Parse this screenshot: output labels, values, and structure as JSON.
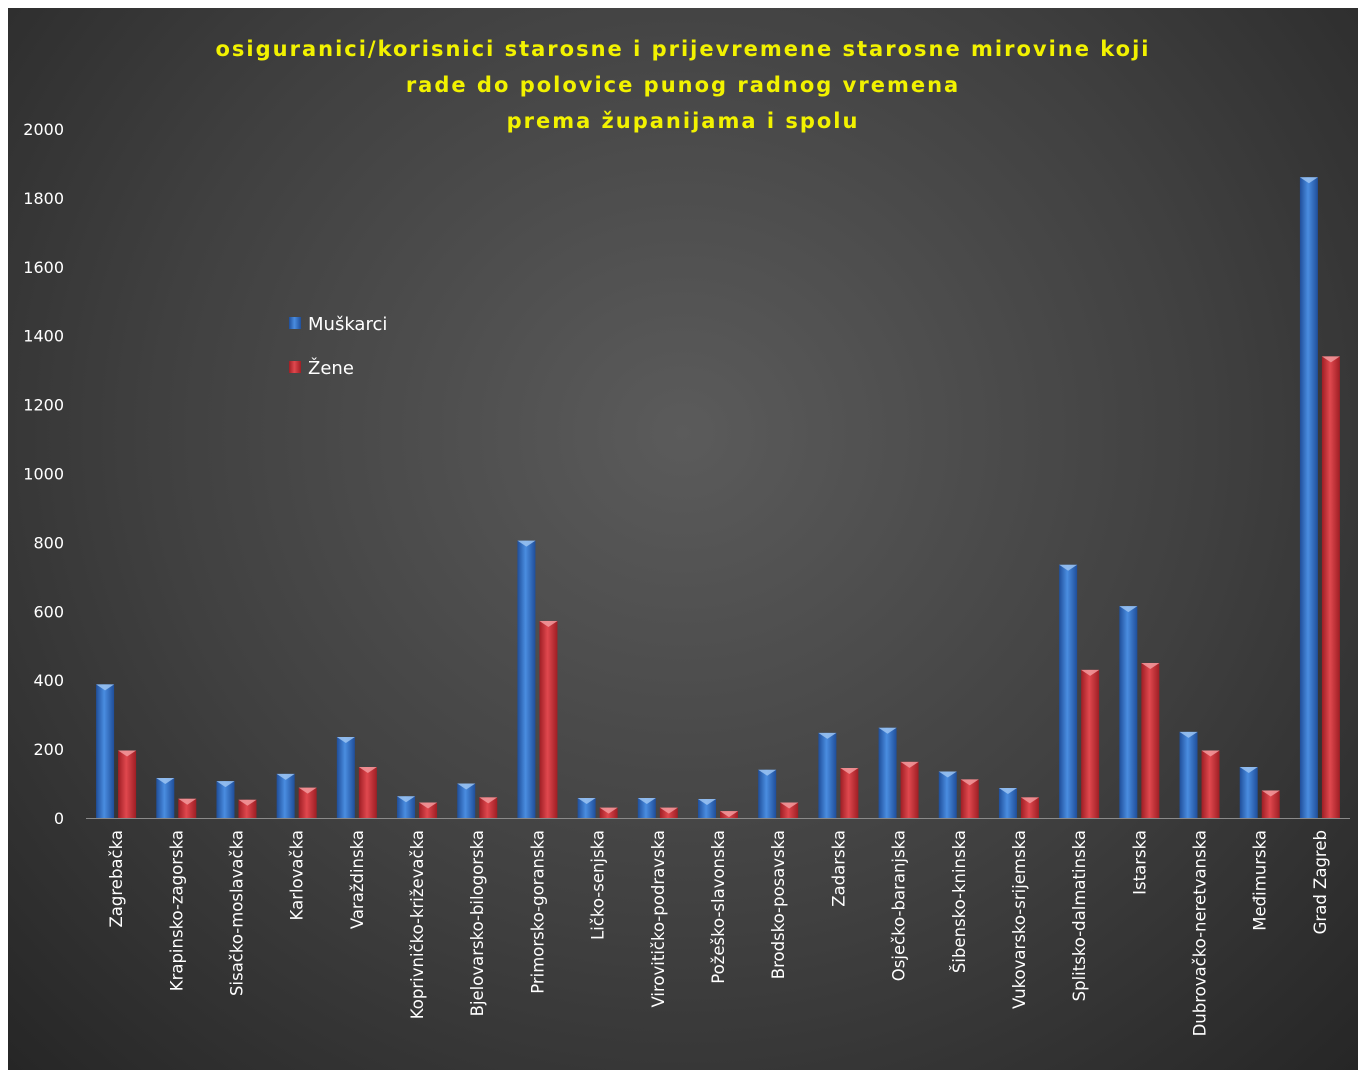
{
  "chart_data": {
    "type": "bar",
    "title": [
      "osiguranici/korisnici starosne i prijevremene starosne mirovine koji",
      "rade do polovice punog radnog vremena",
      "prema županijama i spolu"
    ],
    "xlabel": "",
    "ylabel": "",
    "ylim": [
      0,
      2000
    ],
    "yticks": [
      "0",
      "200",
      "400",
      "600",
      "800",
      "1000",
      "1200",
      "1400",
      "1600",
      "1800",
      "2000"
    ],
    "grid": false,
    "legend_position": "upper-left inside plot",
    "categories": [
      "Zagrebačka",
      "Krapinsko-zagorska",
      "Sisačko-moslavačka",
      "Karlovačka",
      "Varaždinska",
      "Koprivničko-križevačka",
      "Bjelovarsko-bilogorska",
      "Primorsko-goranska",
      "Ličko-senjska",
      "Virovitičko-podravska",
      "Požeško-slavonska",
      "Brodsko-posavska",
      "Zadarska",
      "Osječko-baranjska",
      "Šibensko-kninska",
      "Vukovarsko-srijemska",
      "Splitsko-dalmatinska",
      "Istarska",
      "Dubrovačko-neretvanska",
      "Međimurska",
      "Grad Zagreb"
    ],
    "series": [
      {
        "name": "Muškarci",
        "color": "#2f6fc6",
        "values": [
          388,
          116,
          107,
          128,
          235,
          63,
          100,
          805,
          58,
          58,
          55,
          140,
          247,
          262,
          135,
          87,
          735,
          615,
          250,
          148,
          1860
        ]
      },
      {
        "name": "Žene",
        "color": "#d6393f",
        "values": [
          196,
          56,
          53,
          88,
          148,
          45,
          60,
          572,
          30,
          30,
          20,
          45,
          145,
          163,
          112,
          60,
          430,
          450,
          196,
          80,
          1340
        ]
      }
    ]
  }
}
